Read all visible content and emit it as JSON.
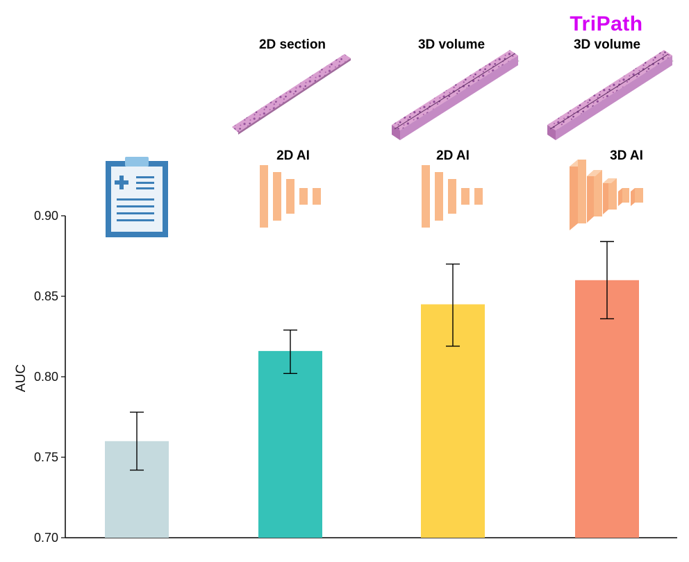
{
  "brand_label": "TriPath",
  "colors": {
    "brand": "#d500f5",
    "ai_icon": "#f9b98a",
    "clipboard_frame": "#3b7fb8",
    "clipboard_paper": "#eaf2f9",
    "clipboard_clip": "#8fc3e6",
    "tissue": "#c98bc4"
  },
  "columns": [
    {
      "section_label": "",
      "model_label": "",
      "icon": "clipboard-icon"
    },
    {
      "section_label": "2D section",
      "model_label": "2D AI",
      "icon": "2d-neural-network-icon",
      "tissue_icon": "2d-tissue-slice-icon"
    },
    {
      "section_label": "3D volume",
      "model_label": "2D AI",
      "icon": "2d-neural-network-icon",
      "tissue_icon": "3d-tissue-volume-icon"
    },
    {
      "section_label": "3D volume",
      "model_label": "3D AI",
      "icon": "3d-neural-network-icon",
      "tissue_icon": "3d-tissue-volume-icon"
    }
  ],
  "chart_data": {
    "type": "bar",
    "title": "",
    "xlabel": "",
    "ylabel": "AUC",
    "ylim": [
      0.7,
      0.9
    ],
    "yticks": [
      "0.70",
      "0.75",
      "0.80",
      "0.85",
      "0.90"
    ],
    "categories": [
      "",
      "",
      "",
      ""
    ],
    "values": [
      0.76,
      0.816,
      0.845,
      0.86
    ],
    "error_low": [
      0.742,
      0.802,
      0.819,
      0.836
    ],
    "error_high": [
      0.778,
      0.829,
      0.87,
      0.884
    ],
    "bar_colors": [
      "#c5dade",
      "#35c2b8",
      "#fdd34b",
      "#f78f70"
    ],
    "grid": false,
    "legend": "none"
  }
}
